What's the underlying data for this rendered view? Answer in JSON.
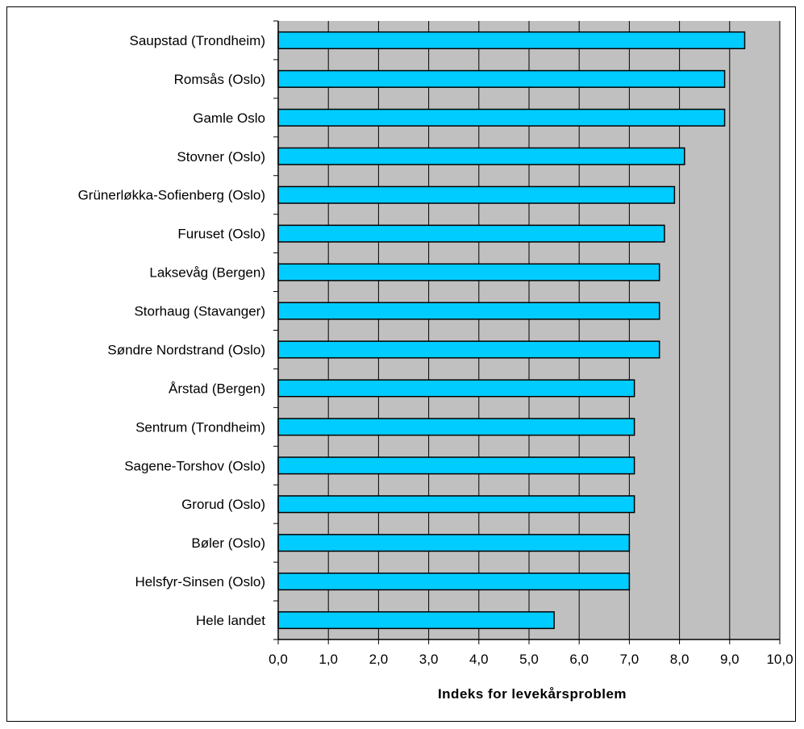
{
  "chart_data": {
    "type": "bar",
    "orientation": "horizontal",
    "categories": [
      "Saupstad (Trondheim)",
      "Romsås (Oslo)",
      "Gamle Oslo",
      "Stovner (Oslo)",
      "Grünerløkka-Sofienberg (Oslo)",
      "Furuset (Oslo)",
      "Laksevåg (Bergen)",
      "Storhaug (Stavanger)",
      "Søndre Nordstrand (Oslo)",
      "Årstad (Bergen)",
      "Sentrum (Trondheim)",
      "Sagene-Torshov (Oslo)",
      "Grorud (Oslo)",
      "Bøler (Oslo)",
      "Helsfyr-Sinsen (Oslo)",
      "Hele landet"
    ],
    "values": [
      9.3,
      8.9,
      8.9,
      8.1,
      7.9,
      7.7,
      7.6,
      7.6,
      7.6,
      7.1,
      7.1,
      7.1,
      7.1,
      7.0,
      7.0,
      5.5
    ],
    "xlabel": "Indeks for levekårsproblem",
    "ylabel": "",
    "title": "",
    "xlim": [
      0,
      10
    ],
    "xticks": [
      "0,0",
      "1,0",
      "2,0",
      "3,0",
      "4,0",
      "5,0",
      "6,0",
      "7,0",
      "8,0",
      "9,0",
      "10,0"
    ],
    "grid": "vertical",
    "colors": {
      "bar": "#00CCFF",
      "bar_border": "#000000",
      "plot_background": "#C0C0C0",
      "gridline": "#000000"
    }
  }
}
